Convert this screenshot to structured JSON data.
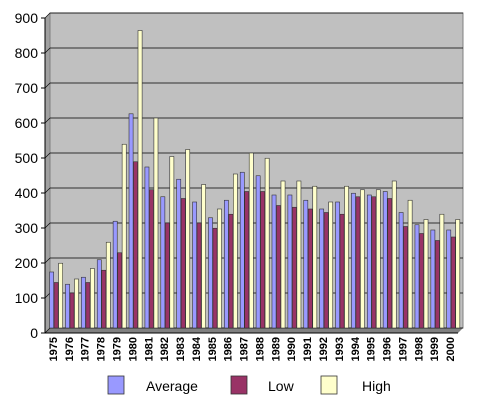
{
  "chart_data": {
    "type": "bar",
    "title": "",
    "xlabel": "",
    "ylabel": "",
    "ylim": [
      0,
      900
    ],
    "yticks": [
      0,
      100,
      200,
      300,
      400,
      500,
      600,
      700,
      800,
      900
    ],
    "grid": "horizontal",
    "legend_position": "bottom",
    "categories": [
      "1975",
      "1976",
      "1977",
      "1978",
      "1979",
      "1980",
      "1981",
      "1982",
      "1983",
      "1984",
      "1985",
      "1986",
      "1987",
      "1988",
      "1989",
      "1990",
      "1991",
      "1992",
      "1993",
      "1994",
      "1995",
      "1996",
      "1997",
      "1998",
      "1999",
      "2000"
    ],
    "series": [
      {
        "name": "Average",
        "color": "#9999ff",
        "values": [
          160,
          125,
          145,
          195,
          305,
          612,
          460,
          375,
          425,
          360,
          315,
          365,
          445,
          435,
          380,
          380,
          365,
          340,
          360,
          385,
          380,
          390,
          330,
          295,
          280,
          280
        ]
      },
      {
        "name": "Low",
        "color": "#993366",
        "values": [
          130,
          100,
          130,
          165,
          215,
          475,
          395,
          300,
          370,
          300,
          285,
          325,
          390,
          390,
          350,
          345,
          340,
          330,
          325,
          375,
          375,
          370,
          290,
          270,
          250,
          260
        ]
      },
      {
        "name": "High",
        "color": "#ffffcc",
        "values": [
          185,
          140,
          170,
          245,
          525,
          850,
          600,
          490,
          510,
          410,
          340,
          440,
          500,
          485,
          420,
          420,
          405,
          360,
          405,
          395,
          395,
          420,
          365,
          310,
          325,
          310
        ]
      }
    ]
  }
}
